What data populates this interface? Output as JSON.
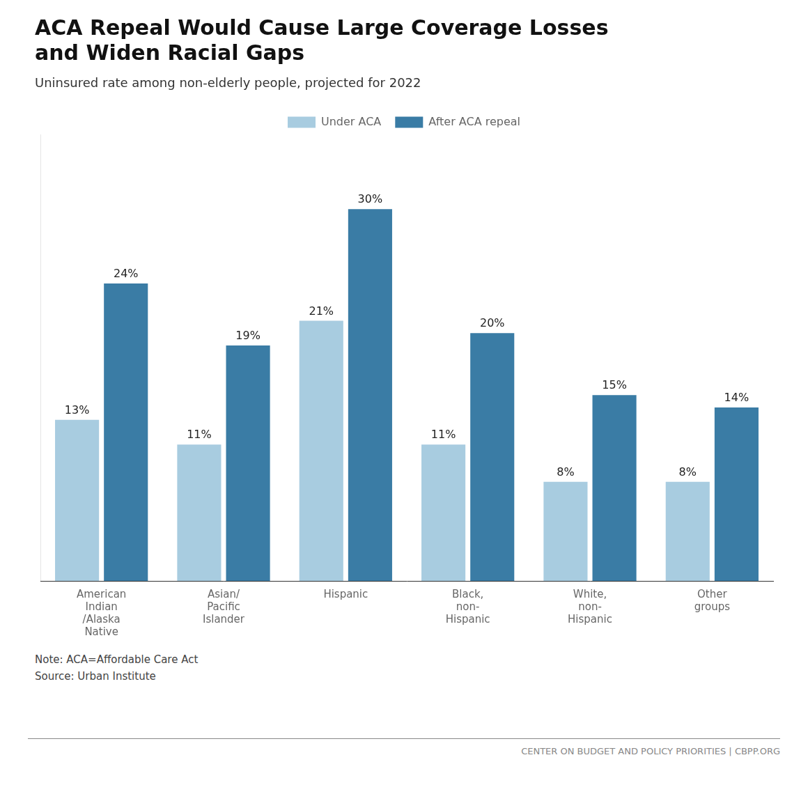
{
  "chart_data": {
    "type": "bar",
    "title": "ACA Repeal Would Cause Large Coverage Losses\nand Widen Racial Gaps",
    "subtitle": "Uninsured rate among non-elderly people, projected for 2022",
    "categories": [
      "American\nIndian\n/Alaska\nNative",
      "Asian/\nPacific\nIslander",
      "Hispanic",
      "Black,\nnon-\nHispanic",
      "White,\nnon-\nHispanic",
      "Other\ngroups"
    ],
    "series": [
      {
        "name": "Under ACA",
        "color": "#a8cce0",
        "values": [
          13,
          11,
          21,
          11,
          8,
          8
        ],
        "value_labels": [
          "13%",
          "11%",
          "21%",
          "11%",
          "8%",
          "8%"
        ]
      },
      {
        "name": "After ACA repeal",
        "color": "#3a7ca5",
        "values": [
          24,
          19,
          30,
          20,
          15,
          14
        ],
        "value_labels": [
          "24%",
          "19%",
          "30%",
          "20%",
          "15%",
          "14%"
        ]
      }
    ],
    "ylim": [
      0,
      36
    ],
    "tick_labels": "x",
    "grid": false,
    "legend": "top",
    "data_labels": true,
    "annotations": [
      "Note: ACA=Affordable Care Act",
      "Source: Urban Institute",
      "CENTER ON BUDGET AND POLICY PRIORITIES | CBPP.ORG"
    ]
  }
}
